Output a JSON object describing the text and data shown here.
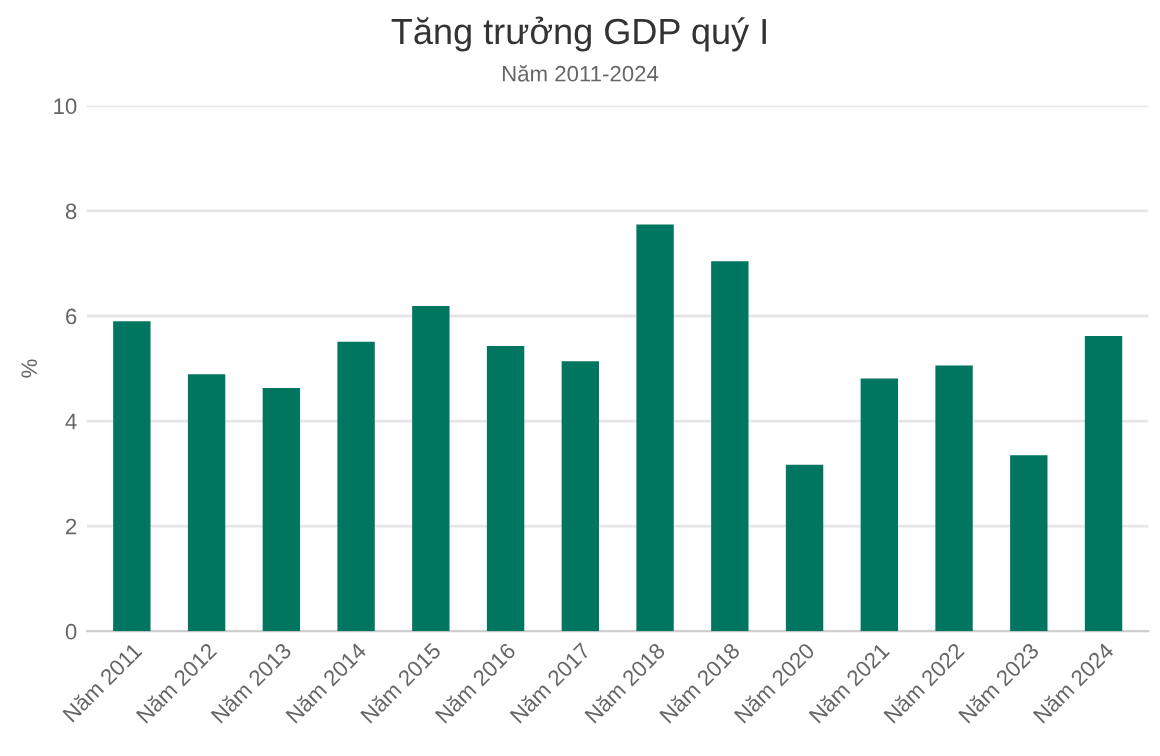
{
  "chart_data": {
    "type": "bar",
    "title": "Tăng trưởng GDP quý I",
    "subtitle": "Năm 2011-2024",
    "ylabel": "%",
    "categories": [
      "Năm 2011",
      "Năm 2012",
      "Năm 2013",
      "Năm 2014",
      "Năm 2015",
      "Năm 2016",
      "Năm 2017",
      "Năm 2018",
      "Năm 2018",
      "Năm 2020",
      "Năm 2021",
      "Năm 2022",
      "Năm 2023",
      "Năm 2024"
    ],
    "values": [
      5.9,
      4.89,
      4.63,
      5.51,
      6.19,
      5.43,
      5.14,
      7.74,
      7.04,
      3.17,
      4.81,
      5.06,
      3.35,
      5.62
    ],
    "color": "#00755f",
    "ylim": [
      0,
      10
    ],
    "yticks": [
      0,
      2,
      4,
      6,
      8,
      10
    ],
    "grid": "y",
    "legend": false
  }
}
